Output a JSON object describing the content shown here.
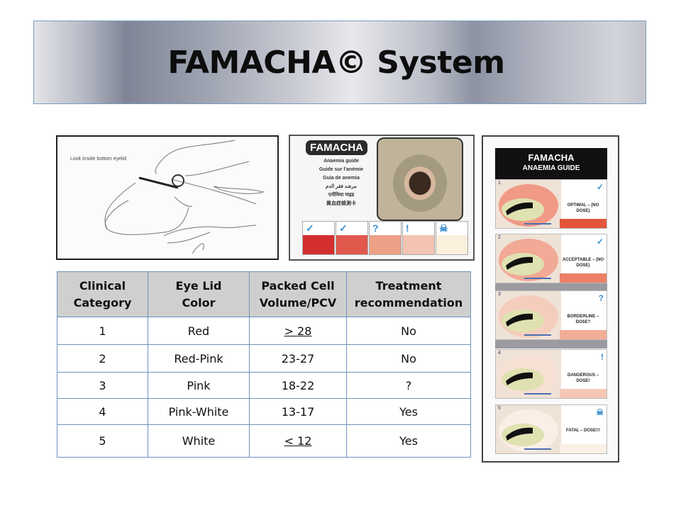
{
  "title": "FAMACHA© System",
  "illustration": {
    "caption": "Look inside bottom eyelid"
  },
  "card": {
    "logo": "FAMACHA",
    "languages": [
      "Anaemia guide",
      "Guide sur l'anémie",
      "Guia de anemia",
      "مرشد فقر الدم",
      "एनीमिया गाइड",
      "貧血症檢測卡"
    ],
    "swatches": [
      {
        "icon": "check-icon",
        "symbol": "✓",
        "color": "#d42f2f"
      },
      {
        "icon": "check-icon",
        "symbol": "✓",
        "color": "#e0594c"
      },
      {
        "icon": "question-icon",
        "symbol": "?",
        "color": "#eda086"
      },
      {
        "icon": "exclamation-icon",
        "symbol": "!",
        "color": "#f3c4b2"
      },
      {
        "icon": "skull-icon",
        "symbol": "☠",
        "color": "#faf0dc"
      }
    ]
  },
  "guide": {
    "title": "FAMACHA",
    "subtitle": "ANAEMIA GUIDE",
    "panels": [
      {
        "number": "1",
        "label": "OPTIMAL – (NO DOSE)",
        "symbol": "✓",
        "color": "#e2553a",
        "lid": "#f19a86"
      },
      {
        "number": "2",
        "label": "ACCEPTABLE – (NO DOSE)",
        "symbol": "✓",
        "color": "#ec8066",
        "lid": "#f2a995"
      },
      {
        "number": "3",
        "label": "BORDERLINE – DOSE?",
        "symbol": "?",
        "color": "#f1ad95",
        "lid": "#f5cdbd"
      },
      {
        "number": "4",
        "label": "DANGEROUS – DOSE!",
        "symbol": "!",
        "color": "#f4c8b5",
        "lid": "#f7e0d4"
      },
      {
        "number": "5",
        "label": "FATAL – DOSE!!!",
        "symbol": "☠",
        "color": "#faf0e4",
        "lid": "#fbeee6"
      }
    ]
  },
  "table": {
    "headers": [
      [
        "Clinical",
        "Category"
      ],
      [
        "Eye Lid",
        "Color"
      ],
      [
        "Packed Cell",
        "Volume/PCV"
      ],
      [
        "Treatment",
        "recommendation"
      ]
    ],
    "rows": [
      [
        "1",
        "Red",
        "> 28",
        "No"
      ],
      [
        "2",
        "Red-Pink",
        "23-27",
        "No"
      ],
      [
        "3",
        "Pink",
        "18-22",
        "?"
      ],
      [
        "4",
        "Pink-White",
        "13-17",
        "Yes"
      ],
      [
        "5",
        "White",
        "< 12",
        "Yes"
      ]
    ]
  }
}
